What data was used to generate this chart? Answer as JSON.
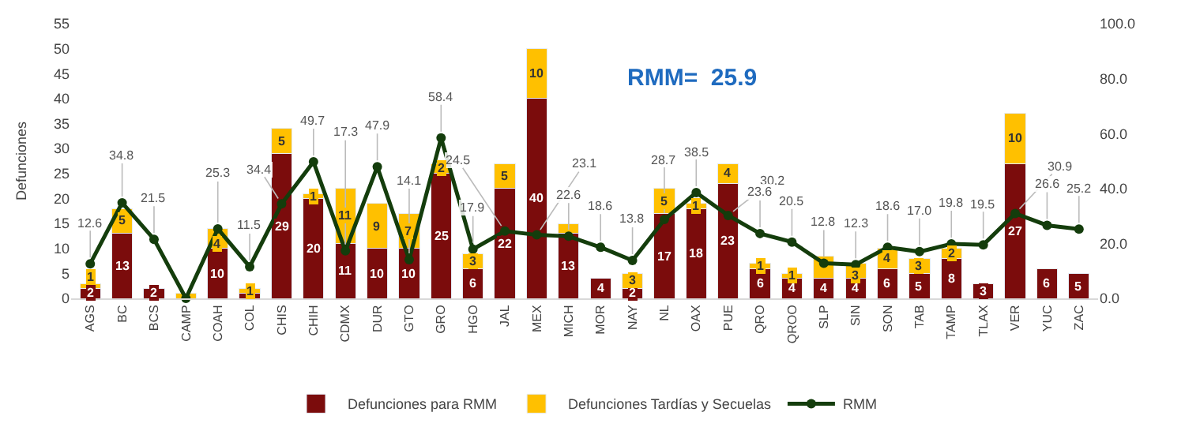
{
  "chart_data": {
    "type": "bar",
    "stacked": true,
    "ylabel": "Defunciones",
    "categories": [
      "AGS",
      "BC",
      "BCS",
      "CAMP",
      "COAH",
      "COL",
      "CHIS",
      "CHIH",
      "CDMX",
      "DUR",
      "GTO",
      "GRO",
      "HGO",
      "JAL",
      "MEX",
      "MICH",
      "MOR",
      "NAY",
      "NL",
      "OAX",
      "PUE",
      "QRO",
      "QROO",
      "SLP",
      "SIN",
      "SON",
      "TAB",
      "TAMP",
      "TLAX",
      "VER",
      "YUC",
      "ZAC"
    ],
    "series": [
      {
        "name": "Defunciones para RMM",
        "color": "#7b0c0c",
        "values": [
          2,
          13,
          2,
          null,
          10,
          1,
          29,
          20,
          11,
          10,
          10,
          25,
          6,
          22,
          40,
          13,
          4,
          2,
          17,
          18,
          23,
          6,
          4,
          4,
          4,
          6,
          5,
          8,
          3,
          27,
          6,
          5
        ],
        "value_labels": [
          "2",
          "13",
          "2",
          null,
          "10",
          null,
          "29",
          "20",
          "11",
          "10",
          "10",
          "25",
          "6",
          "22",
          "40",
          "13",
          "4",
          "2",
          "17",
          "18",
          "23",
          "6",
          "4",
          "4",
          "4",
          "6",
          "5",
          "8",
          "3",
          "27",
          "6",
          "5"
        ]
      },
      {
        "name": "Defunciones Tardías y Secuelas",
        "color": "#ffc000",
        "values": [
          1,
          5,
          null,
          1,
          4,
          1,
          5,
          1,
          11,
          9,
          7,
          2,
          3,
          5,
          10,
          2,
          null,
          3,
          5,
          1,
          4,
          1,
          1,
          4.5,
          3,
          4,
          3,
          2,
          null,
          10,
          null,
          null
        ],
        "value_labels": [
          "1",
          "5",
          null,
          null,
          "4",
          "1",
          "5",
          "1",
          "11",
          "9",
          "7",
          "2",
          "3",
          "5",
          "10",
          null,
          null,
          "3",
          "5",
          "1",
          "4",
          "1",
          "1",
          null,
          "3",
          "4",
          "3",
          "2",
          null,
          "10",
          null,
          null
        ]
      },
      {
        "name": "RMM",
        "type": "line",
        "axis": "y2",
        "color": "#143d0c",
        "marker": "circle",
        "values": [
          12.6,
          34.8,
          21.5,
          0,
          25.3,
          11.5,
          34.4,
          49.7,
          17.3,
          47.9,
          14.1,
          58.4,
          17.9,
          24.5,
          23.1,
          22.6,
          18.6,
          13.8,
          28.7,
          38.5,
          30.2,
          23.6,
          20.5,
          12.8,
          12.3,
          18.6,
          17.0,
          19.8,
          19.5,
          30.9,
          26.6,
          25.2
        ],
        "value_labels": [
          "12.6",
          "34.8",
          "21.5",
          null,
          "25.3",
          "11.5",
          "34.4",
          "49.7",
          "17.3",
          "47.9",
          "14.1",
          "58.4",
          "17.9",
          "24.5",
          "23.1",
          "22.6",
          "18.6",
          "13.8",
          "28.7",
          "38.5",
          "30.2",
          "23.6",
          "20.5",
          "12.8",
          "12.3",
          "18.6",
          "17.0",
          "19.8",
          "19.5",
          "30.9",
          "26.6",
          "25.2"
        ]
      }
    ],
    "ylim": [
      0,
      55
    ],
    "yticks": [
      0,
      5,
      10,
      15,
      20,
      25,
      30,
      35,
      40,
      45,
      50,
      55
    ],
    "y2lim": [
      0,
      100
    ],
    "y2ticks": [
      {
        "value": 0,
        "label": "0.0"
      },
      {
        "value": 20,
        "label": "20.0"
      },
      {
        "value": 40,
        "label": "40.0"
      },
      {
        "value": 60,
        "label": "60.0"
      },
      {
        "value": 80,
        "label": "80.0"
      },
      {
        "value": 100,
        "label": "100.0"
      }
    ],
    "annotations": [
      "RMM=  25.9"
    ],
    "legend": "bottom"
  }
}
